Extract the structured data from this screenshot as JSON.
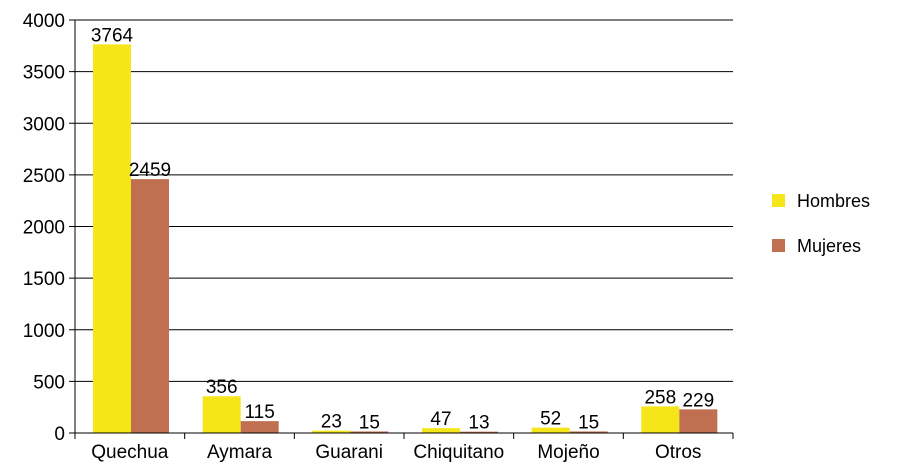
{
  "chart_data": {
    "type": "bar",
    "categories": [
      "Quechua",
      "Aymara",
      "Guarani",
      "Chiquitano",
      "Mojeño",
      "Otros"
    ],
    "series": [
      {
        "name": "Hombres",
        "values": [
          3764,
          356,
          23,
          47,
          52,
          258
        ],
        "color": "#f5e61a"
      },
      {
        "name": "Mujeres",
        "values": [
          2459,
          115,
          15,
          13,
          15,
          229
        ],
        "color": "#c07050"
      }
    ],
    "yticks": [
      "0",
      "500",
      "1000",
      "1500",
      "2000",
      "2500",
      "3000",
      "3500",
      "4000"
    ],
    "ylim": [
      0,
      4000
    ],
    "grid": true,
    "legend": "right"
  }
}
